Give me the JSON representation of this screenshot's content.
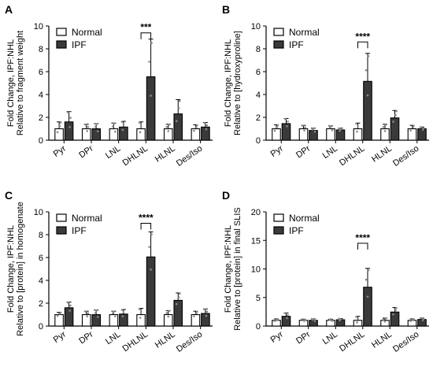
{
  "colors": {
    "normal_fill": "#ffffff",
    "ipf_fill": "#3a3a3a",
    "axis": "#000000",
    "point_color": "#8a8a8a"
  },
  "chart_data": [
    {
      "panel_letter": "A",
      "type": "bar",
      "ylabel_line1": "Fold  Change,  IPF:NHL",
      "ylabel_line2": "Relative to fragment weight",
      "ylim": [
        0,
        10
      ],
      "yticks": [
        0,
        2,
        4,
        6,
        8,
        10
      ],
      "categories": [
        "Pyr",
        "DPr",
        "LNL",
        "DHLNL",
        "HLNL",
        "Des/Iso"
      ],
      "legend": [
        "Normal",
        "IPF"
      ],
      "legend_position": "top-left",
      "series": [
        {
          "name": "Normal",
          "values": [
            1.0,
            1.0,
            1.0,
            1.0,
            1.0,
            1.0
          ],
          "errors": [
            0.6,
            0.4,
            0.5,
            0.6,
            0.4,
            0.35
          ]
        },
        {
          "name": "IPF",
          "values": [
            1.6,
            1.0,
            1.15,
            5.55,
            2.3,
            1.15
          ],
          "errors": [
            0.9,
            0.45,
            0.5,
            3.3,
            1.25,
            0.4
          ]
        }
      ],
      "significance": {
        "category_index": 3,
        "label": "***",
        "bracket_y": 9.4
      }
    },
    {
      "panel_letter": "B",
      "type": "bar",
      "ylabel_line1": "Fold  Change,  IPF:NHL",
      "ylabel_line2": "Relative to [hydroxyproline]",
      "ylim": [
        0,
        10
      ],
      "yticks": [
        0,
        2,
        4,
        6,
        8,
        10
      ],
      "categories": [
        "Pyr",
        "DPr",
        "LNL",
        "DHLNL",
        "HLNL",
        "Des/Iso"
      ],
      "legend": [
        "Normal",
        "IPF"
      ],
      "legend_position": "top-left",
      "series": [
        {
          "name": "Normal",
          "values": [
            1.0,
            1.0,
            1.0,
            1.0,
            1.0,
            1.0
          ],
          "errors": [
            0.35,
            0.3,
            0.25,
            0.5,
            0.4,
            0.3
          ]
        },
        {
          "name": "IPF",
          "values": [
            1.45,
            0.85,
            0.9,
            5.15,
            1.95,
            1.0
          ],
          "errors": [
            0.45,
            0.2,
            0.15,
            2.45,
            0.65,
            0.15
          ]
        }
      ],
      "significance": {
        "category_index": 3,
        "label": "****",
        "bracket_y": 8.6
      }
    },
    {
      "panel_letter": "C",
      "type": "bar",
      "ylabel_line1": "Fold  Change,  IPF:NHL",
      "ylabel_line2": "Relative to [protein] in homogenate",
      "ylim": [
        0,
        10
      ],
      "yticks": [
        0,
        2,
        4,
        6,
        8,
        10
      ],
      "categories": [
        "Pyr",
        "DPr",
        "LNL",
        "DHLNL",
        "HLNL",
        "Des/Iso"
      ],
      "legend": [
        "Normal",
        "IPF"
      ],
      "legend_position": "top-left",
      "series": [
        {
          "name": "Normal",
          "values": [
            1.0,
            1.0,
            1.0,
            1.0,
            1.0,
            1.0
          ],
          "errors": [
            0.2,
            0.3,
            0.3,
            0.55,
            0.35,
            0.3
          ]
        },
        {
          "name": "IPF",
          "values": [
            1.6,
            1.0,
            1.05,
            6.05,
            2.25,
            1.1
          ],
          "errors": [
            0.5,
            0.4,
            0.4,
            2.2,
            0.65,
            0.4
          ]
        }
      ],
      "significance": {
        "category_index": 3,
        "label": "****",
        "bracket_y": 9.0
      }
    },
    {
      "panel_letter": "D",
      "type": "bar",
      "ylabel_line1": "Fold  Change,  IPF:NHL",
      "ylabel_line2": "Relative to [protein] in final SLIS",
      "ylim": [
        0,
        20
      ],
      "yticks": [
        0,
        5,
        10,
        15,
        20
      ],
      "categories": [
        "Pyr",
        "DPr",
        "LNL",
        "DHLNL",
        "HLNL",
        "Des/Iso"
      ],
      "legend": [
        "Normal",
        "IPF"
      ],
      "legend_position": "top-left",
      "series": [
        {
          "name": "Normal",
          "values": [
            1.0,
            1.0,
            1.0,
            1.0,
            1.0,
            1.0
          ],
          "errors": [
            0.25,
            0.2,
            0.2,
            0.7,
            0.4,
            0.25
          ]
        },
        {
          "name": "IPF",
          "values": [
            1.7,
            1.0,
            1.1,
            6.8,
            2.45,
            1.15
          ],
          "errors": [
            0.6,
            0.25,
            0.2,
            3.3,
            0.8,
            0.25
          ]
        }
      ],
      "significance": {
        "category_index": 3,
        "label": "****",
        "bracket_y": 14.5
      }
    }
  ]
}
